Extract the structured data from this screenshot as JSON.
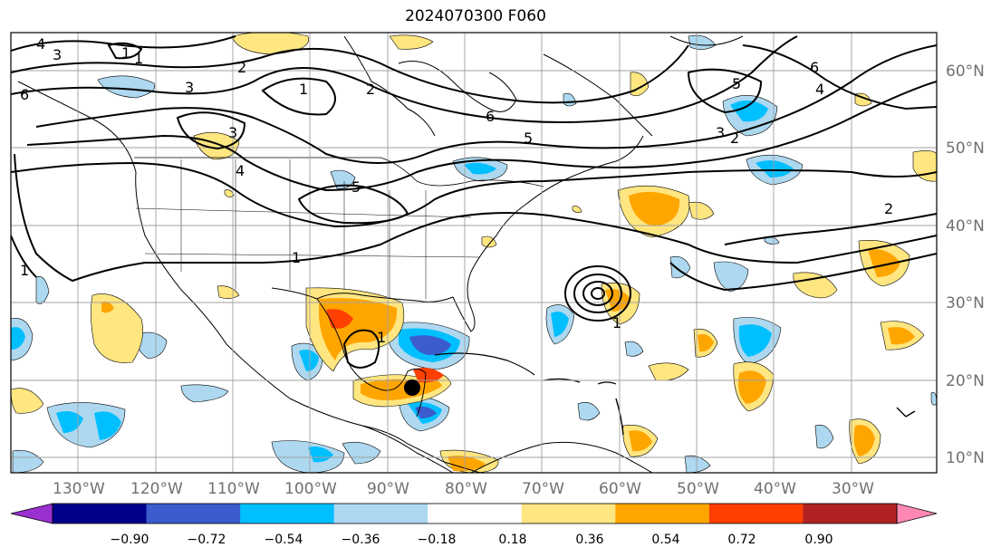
{
  "title": "2024070300 F060",
  "lon_labels": [
    "130°W",
    "120°W",
    "110°W",
    "100°W",
    "90°W",
    "80°W",
    "70°W",
    "60°W",
    "50°W",
    "40°W",
    "30°W"
  ],
  "lat_labels": [
    "60°N",
    "50°N",
    "40°N",
    "30°N",
    "20°N",
    "10°N"
  ],
  "colorbar": {
    "tick_labels": [
      "−0.90",
      "−0.72",
      "−0.54",
      "−0.36",
      "−0.18",
      "0.18",
      "0.36",
      "0.54",
      "0.72",
      "0.90"
    ],
    "colors": [
      "#9b30d0",
      "#00008b",
      "#3a5ccc",
      "#00bfff",
      "#add8f0",
      "#ffffff",
      "#ffe680",
      "#ffa500",
      "#ff4000",
      "#b22222",
      "#ff88b4"
    ]
  },
  "contour_labels": [
    "4",
    "3",
    "1",
    "2",
    "6",
    "3",
    "1",
    "2",
    "6",
    "5",
    "5",
    "3",
    "2",
    "6",
    "4",
    "3",
    "4",
    "5",
    "1",
    "1",
    "1",
    "1",
    "2",
    "1"
  ],
  "marker": "storm-center"
}
